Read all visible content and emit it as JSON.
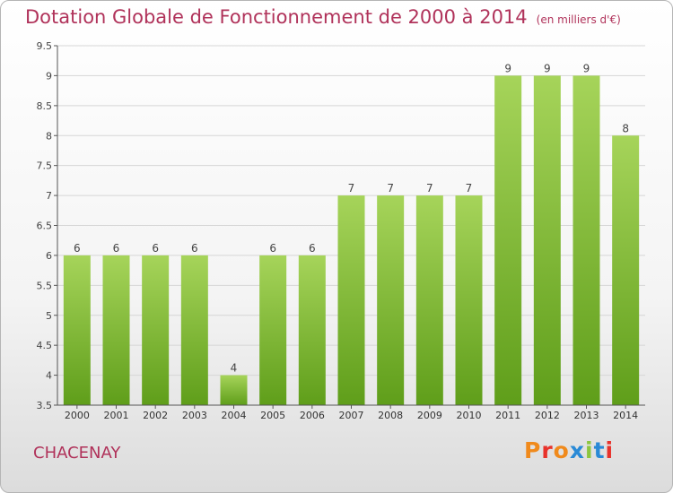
{
  "header": {
    "title": "Dotation Globale de Fonctionnement de 2000 à 2014",
    "subtitle": "(en milliers d'€)"
  },
  "footer": {
    "commune": "CHACENAY",
    "brand_letters": [
      "P",
      "r",
      "o",
      "x",
      "i",
      "t",
      "i"
    ],
    "brand_colors": [
      "#f08a1c",
      "#e8322b",
      "#f08a1c",
      "#2a8ad6",
      "#8cc63f",
      "#2a8ad6",
      "#e8322b"
    ]
  },
  "chart_data": {
    "type": "bar",
    "title": "Dotation Globale de Fonctionnement de 2000 à 2014",
    "subtitle": "(en milliers d'€)",
    "xlabel": "",
    "ylabel": "",
    "categories": [
      "2000",
      "2001",
      "2002",
      "2003",
      "2004",
      "2005",
      "2006",
      "2007",
      "2008",
      "2009",
      "2010",
      "2011",
      "2012",
      "2013",
      "2014"
    ],
    "values": [
      6,
      6,
      6,
      6,
      4,
      6,
      6,
      7,
      7,
      7,
      7,
      9,
      9,
      9,
      8
    ],
    "value_labels": [
      "6",
      "6",
      "6",
      "6",
      "4",
      "6",
      "6",
      "7",
      "7",
      "7",
      "7",
      "9",
      "9",
      "9",
      "8"
    ],
    "ylim": [
      3.5,
      9.5
    ],
    "yticks": [
      3.5,
      4,
      4.5,
      5,
      5.5,
      6,
      6.5,
      7,
      7.5,
      8,
      8.5,
      9,
      9.5
    ],
    "ytick_labels": [
      "3.5",
      "4",
      "4.5",
      "5",
      "5.5",
      "6",
      "6.5",
      "7",
      "7.5",
      "8",
      "8.5",
      "9",
      "9.5"
    ],
    "grid": true,
    "colors": {
      "bar_top": "#a6d45a",
      "bar_bottom": "#5f9e1a",
      "grid": "#d6d6d6",
      "axis": "#555555"
    }
  }
}
